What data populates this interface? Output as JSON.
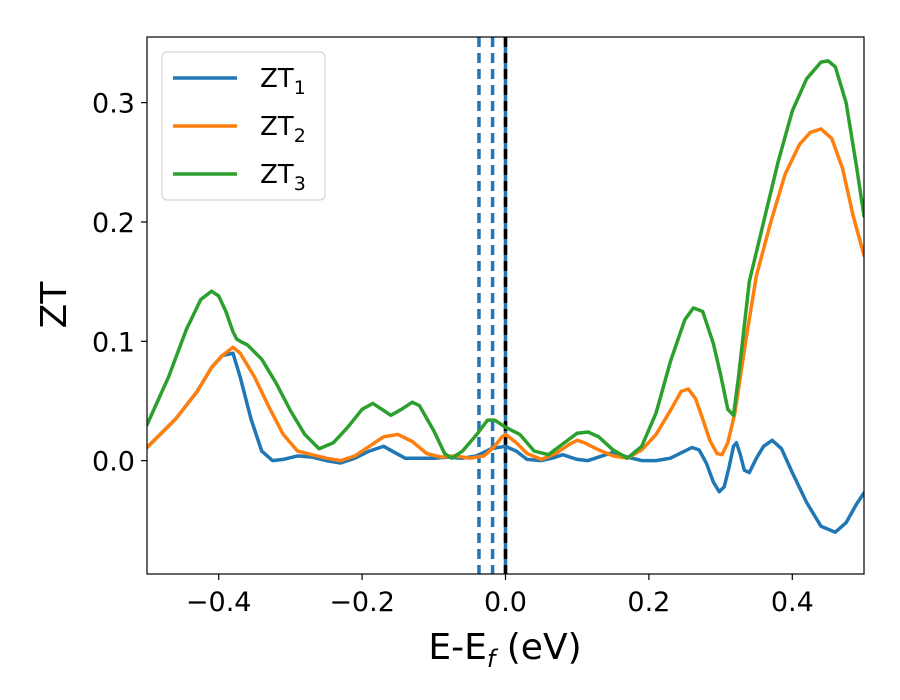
{
  "chart_data": {
    "type": "line",
    "xlabel_main": "E-E",
    "xlabel_sub": "f",
    "xlabel_tail": " (eV)",
    "ylabel": "ZT",
    "xlim": [
      -0.5,
      0.5
    ],
    "ylim": [
      -0.095,
      0.355
    ],
    "x_ticks": [
      -0.4,
      -0.2,
      0.0,
      0.2,
      0.4
    ],
    "x_tick_labels": [
      "−0.4",
      "−0.2",
      "0.0",
      "0.2",
      "0.4"
    ],
    "y_ticks": [
      0.0,
      0.1,
      0.2,
      0.3
    ],
    "y_tick_labels": [
      "0.0",
      "0.1",
      "0.2",
      "0.3"
    ],
    "grid": false,
    "legend_position": "top-left",
    "vertical_lines": [
      {
        "x": -0.037,
        "color": "#1f77b4",
        "style": "dashed"
      },
      {
        "x": -0.018,
        "color": "#1f77b4",
        "style": "dashed"
      },
      {
        "x": 0.0,
        "color": "#1f77b4",
        "style": "solid"
      },
      {
        "x": 0.0,
        "color": "#000000",
        "style": "dashed"
      }
    ],
    "series": [
      {
        "name_base": "ZT",
        "name_sub": "1",
        "color": "#1f77b4",
        "x": [
          -0.5,
          -0.46,
          -0.43,
          -0.41,
          -0.395,
          -0.38,
          -0.37,
          -0.355,
          -0.34,
          -0.325,
          -0.31,
          -0.29,
          -0.27,
          -0.25,
          -0.23,
          -0.21,
          -0.19,
          -0.17,
          -0.155,
          -0.14,
          -0.12,
          -0.1,
          -0.08,
          -0.06,
          -0.04,
          -0.02,
          0.0,
          0.015,
          0.03,
          0.05,
          0.065,
          0.08,
          0.09,
          0.1,
          0.115,
          0.13,
          0.15,
          0.17,
          0.19,
          0.21,
          0.23,
          0.25,
          0.26,
          0.27,
          0.28,
          0.29,
          0.298,
          0.305,
          0.312,
          0.318,
          0.322,
          0.327,
          0.333,
          0.34,
          0.35,
          0.36,
          0.372,
          0.385,
          0.4,
          0.42,
          0.44,
          0.46,
          0.475,
          0.49,
          0.5
        ],
        "y": [
          0.011,
          0.035,
          0.058,
          0.078,
          0.088,
          0.09,
          0.07,
          0.035,
          0.008,
          0.0,
          0.001,
          0.004,
          0.003,
          0.0,
          -0.002,
          0.002,
          0.008,
          0.012,
          0.007,
          0.002,
          0.002,
          0.002,
          0.003,
          0.002,
          0.004,
          0.01,
          0.012,
          0.008,
          0.001,
          0.0,
          0.002,
          0.005,
          0.003,
          0.001,
          0.0,
          0.003,
          0.007,
          0.003,
          0.0,
          0.0,
          0.002,
          0.008,
          0.011,
          0.009,
          -0.002,
          -0.018,
          -0.026,
          -0.022,
          -0.005,
          0.012,
          0.015,
          0.006,
          -0.008,
          -0.01,
          0.002,
          0.012,
          0.017,
          0.01,
          -0.01,
          -0.035,
          -0.055,
          -0.06,
          -0.052,
          -0.036,
          -0.027
        ]
      },
      {
        "name_base": "ZT",
        "name_sub": "2",
        "color": "#ff7f0e",
        "x": [
          -0.5,
          -0.46,
          -0.43,
          -0.41,
          -0.395,
          -0.38,
          -0.37,
          -0.35,
          -0.33,
          -0.31,
          -0.29,
          -0.27,
          -0.25,
          -0.23,
          -0.21,
          -0.19,
          -0.17,
          -0.15,
          -0.13,
          -0.11,
          -0.09,
          -0.07,
          -0.05,
          -0.03,
          -0.015,
          -0.005,
          0.0,
          0.015,
          0.03,
          0.05,
          0.07,
          0.09,
          0.1,
          0.11,
          0.13,
          0.15,
          0.17,
          0.19,
          0.21,
          0.23,
          0.245,
          0.255,
          0.265,
          0.275,
          0.285,
          0.295,
          0.302,
          0.31,
          0.32,
          0.335,
          0.35,
          0.37,
          0.39,
          0.41,
          0.425,
          0.44,
          0.455,
          0.47,
          0.485,
          0.5
        ],
        "y": [
          0.011,
          0.035,
          0.058,
          0.078,
          0.088,
          0.095,
          0.09,
          0.07,
          0.045,
          0.022,
          0.008,
          0.005,
          0.002,
          0.0,
          0.004,
          0.012,
          0.02,
          0.022,
          0.016,
          0.006,
          0.003,
          0.004,
          0.002,
          0.004,
          0.012,
          0.02,
          0.022,
          0.015,
          0.006,
          0.001,
          0.006,
          0.014,
          0.017,
          0.015,
          0.009,
          0.004,
          0.002,
          0.009,
          0.022,
          0.042,
          0.058,
          0.06,
          0.052,
          0.035,
          0.017,
          0.006,
          0.005,
          0.015,
          0.04,
          0.1,
          0.155,
          0.2,
          0.24,
          0.265,
          0.275,
          0.278,
          0.27,
          0.245,
          0.205,
          0.172
        ]
      },
      {
        "name_base": "ZT",
        "name_sub": "3",
        "color": "#2ca02c",
        "x": [
          -0.5,
          -0.47,
          -0.445,
          -0.425,
          -0.41,
          -0.4,
          -0.39,
          -0.38,
          -0.375,
          -0.37,
          -0.36,
          -0.34,
          -0.32,
          -0.3,
          -0.28,
          -0.26,
          -0.24,
          -0.22,
          -0.2,
          -0.185,
          -0.17,
          -0.16,
          -0.145,
          -0.13,
          -0.12,
          -0.1,
          -0.085,
          -0.075,
          -0.06,
          -0.04,
          -0.025,
          -0.015,
          -0.005,
          0.0,
          0.02,
          0.04,
          0.06,
          0.08,
          0.1,
          0.115,
          0.13,
          0.15,
          0.17,
          0.19,
          0.21,
          0.23,
          0.25,
          0.262,
          0.275,
          0.29,
          0.3,
          0.31,
          0.318,
          0.325,
          0.34,
          0.36,
          0.38,
          0.4,
          0.42,
          0.44,
          0.45,
          0.46,
          0.475,
          0.49,
          0.5
        ],
        "y": [
          0.03,
          0.07,
          0.11,
          0.135,
          0.142,
          0.138,
          0.125,
          0.108,
          0.102,
          0.1,
          0.097,
          0.085,
          0.065,
          0.042,
          0.022,
          0.01,
          0.015,
          0.028,
          0.043,
          0.048,
          0.042,
          0.038,
          0.043,
          0.049,
          0.046,
          0.025,
          0.006,
          0.002,
          0.008,
          0.022,
          0.034,
          0.034,
          0.03,
          0.028,
          0.022,
          0.008,
          0.005,
          0.014,
          0.023,
          0.024,
          0.02,
          0.009,
          0.002,
          0.012,
          0.04,
          0.083,
          0.118,
          0.128,
          0.125,
          0.098,
          0.072,
          0.043,
          0.038,
          0.07,
          0.15,
          0.2,
          0.25,
          0.293,
          0.32,
          0.334,
          0.335,
          0.33,
          0.3,
          0.245,
          0.205
        ]
      }
    ]
  }
}
